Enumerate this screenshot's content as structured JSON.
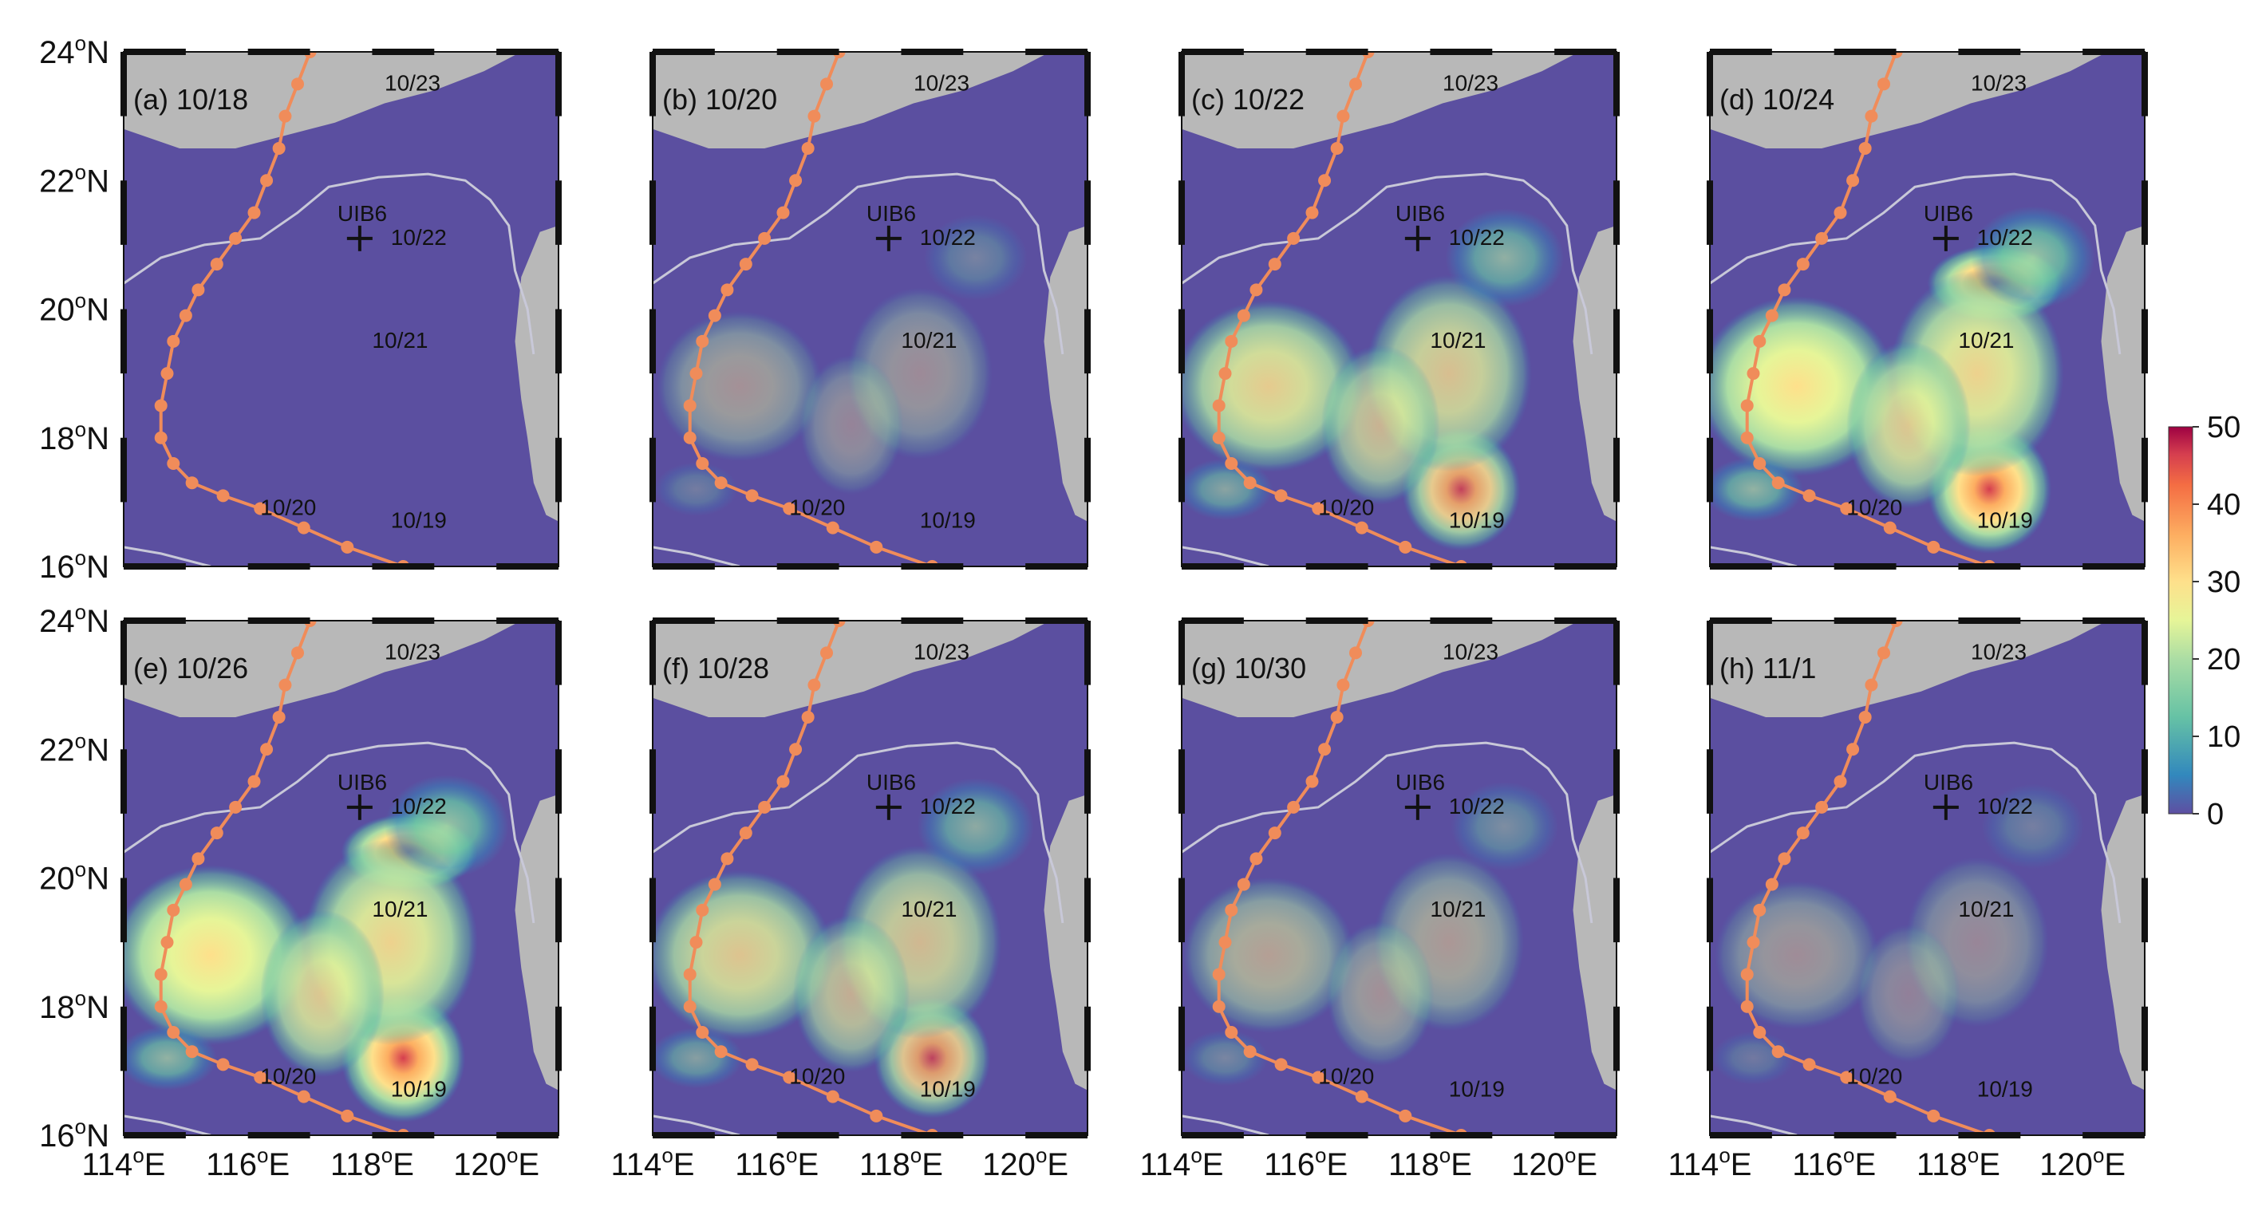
{
  "figure": {
    "panels": [
      {
        "label": "(a) 10/18",
        "intensity": 0.05
      },
      {
        "label": "(b) 10/20",
        "intensity": 0.45
      },
      {
        "label": "(c) 10/22",
        "intensity": 0.85
      },
      {
        "label": "(d) 10/24",
        "intensity": 1.0
      },
      {
        "label": "(e) 10/26",
        "intensity": 1.0
      },
      {
        "label": "(f) 10/28",
        "intensity": 0.8
      },
      {
        "label": "(g) 10/30",
        "intensity": 0.55
      },
      {
        "label": "(h) 11/1",
        "intensity": 0.42
      }
    ],
    "lat_ticks": [
      {
        "lat": 24,
        "deg": "24",
        "hem": "N"
      },
      {
        "lat": 22,
        "deg": "22",
        "hem": "N"
      },
      {
        "lat": 20,
        "deg": "20",
        "hem": "N"
      },
      {
        "lat": 18,
        "deg": "18",
        "hem": "N"
      },
      {
        "lat": 16,
        "deg": "16",
        "hem": "N"
      }
    ],
    "lon_ticks": [
      {
        "lon": 114,
        "deg": "114",
        "hem": "E"
      },
      {
        "lon": 116,
        "deg": "116",
        "hem": "E"
      },
      {
        "lon": 118,
        "deg": "118",
        "hem": "E"
      },
      {
        "lon": 120,
        "deg": "120",
        "hem": "E"
      }
    ],
    "station": {
      "name": "UIB6",
      "lon": 117.8,
      "lat": 21.1
    },
    "track": [
      [
        118.5,
        16.0
      ],
      [
        117.6,
        16.3
      ],
      [
        116.9,
        16.6
      ],
      [
        116.2,
        16.9
      ],
      [
        115.6,
        17.1
      ],
      [
        115.1,
        17.3
      ],
      [
        114.8,
        17.6
      ],
      [
        114.6,
        18.0
      ],
      [
        114.6,
        18.5
      ],
      [
        114.7,
        19.0
      ],
      [
        114.8,
        19.5
      ],
      [
        115.0,
        19.9
      ],
      [
        115.2,
        20.3
      ],
      [
        115.5,
        20.7
      ],
      [
        115.8,
        21.1
      ],
      [
        116.1,
        21.5
      ],
      [
        116.3,
        22.0
      ],
      [
        116.5,
        22.5
      ],
      [
        116.6,
        23.0
      ],
      [
        116.8,
        23.5
      ],
      [
        117.0,
        24.0
      ]
    ],
    "track_labels": [
      {
        "text": "10/19",
        "lon": 118.3,
        "lat": 16.6
      },
      {
        "text": "10/20",
        "lon": 116.2,
        "lat": 16.8
      },
      {
        "text": "10/21",
        "lon": 118.0,
        "lat": 19.4
      },
      {
        "text": "10/22",
        "lon": 118.3,
        "lat": 21.0
      },
      {
        "text": "10/23",
        "lon": 118.2,
        "lat": 23.4
      }
    ],
    "colorbar": {
      "min": 0,
      "max": 50,
      "ticks": [
        "50",
        "40",
        "30",
        "20",
        "10",
        "0"
      ]
    },
    "colors": {
      "background": "#5b4fa0",
      "land": "#b8b8b8",
      "coast": "#c8c8d8",
      "track": "#f08c5a",
      "station": "#111111"
    }
  }
}
